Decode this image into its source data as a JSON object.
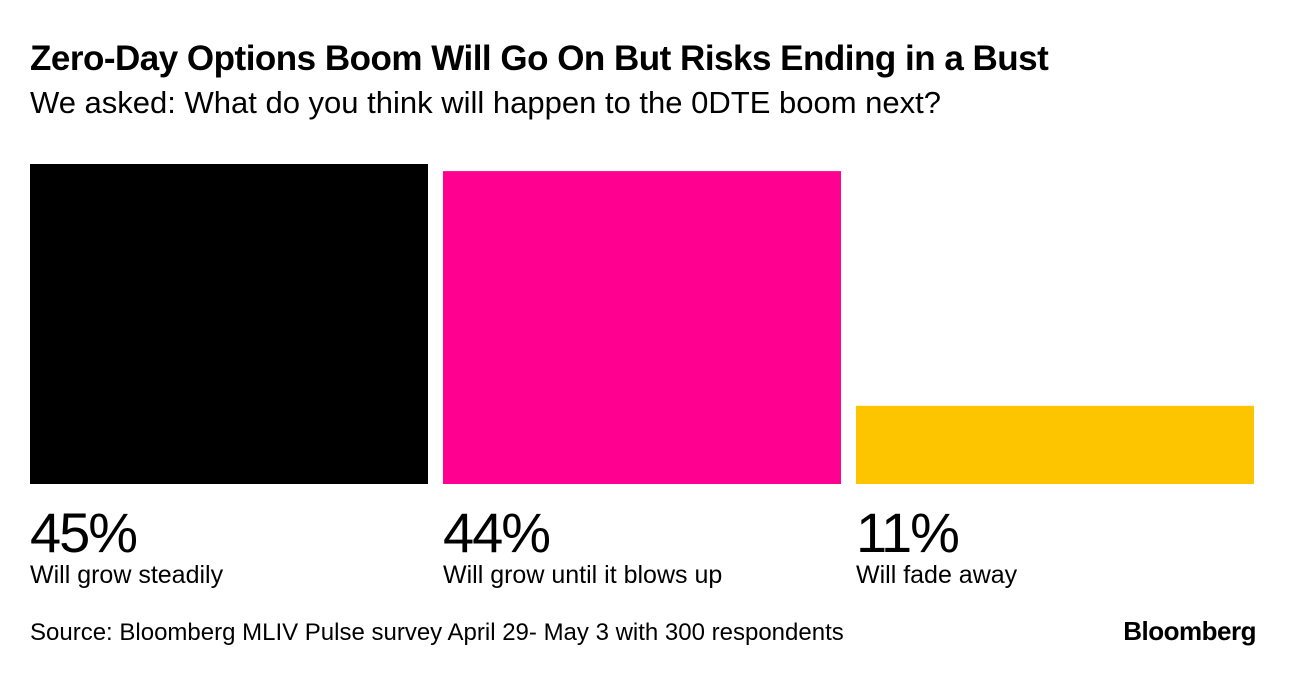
{
  "header": {
    "title": "Zero-Day Options Boom Will Go On But Risks Ending in a Bust",
    "subtitle": "We asked: What do you think will happen to the 0DTE boom next?"
  },
  "footer": {
    "source": "Source: Bloomberg MLIV Pulse survey April 29- May 3 with 300 respondents",
    "brand": "Bloomberg"
  },
  "chart_data": {
    "type": "bar",
    "title": "Zero-Day Options Boom Will Go On But Risks Ending in a Bust",
    "subtitle": "We asked: What do you think will happen to the 0DTE boom next?",
    "categories": [
      "Will grow steadily",
      "Will grow until it blows up",
      "Will fade away"
    ],
    "values": [
      45,
      44,
      11
    ],
    "value_labels": [
      "45%",
      "44%",
      "11%"
    ],
    "colors": [
      "#000000",
      "#ff0090",
      "#fcc500"
    ],
    "unit": "%",
    "ylim": [
      0,
      45
    ],
    "xlabel": "",
    "ylabel": "",
    "grid": false
  }
}
